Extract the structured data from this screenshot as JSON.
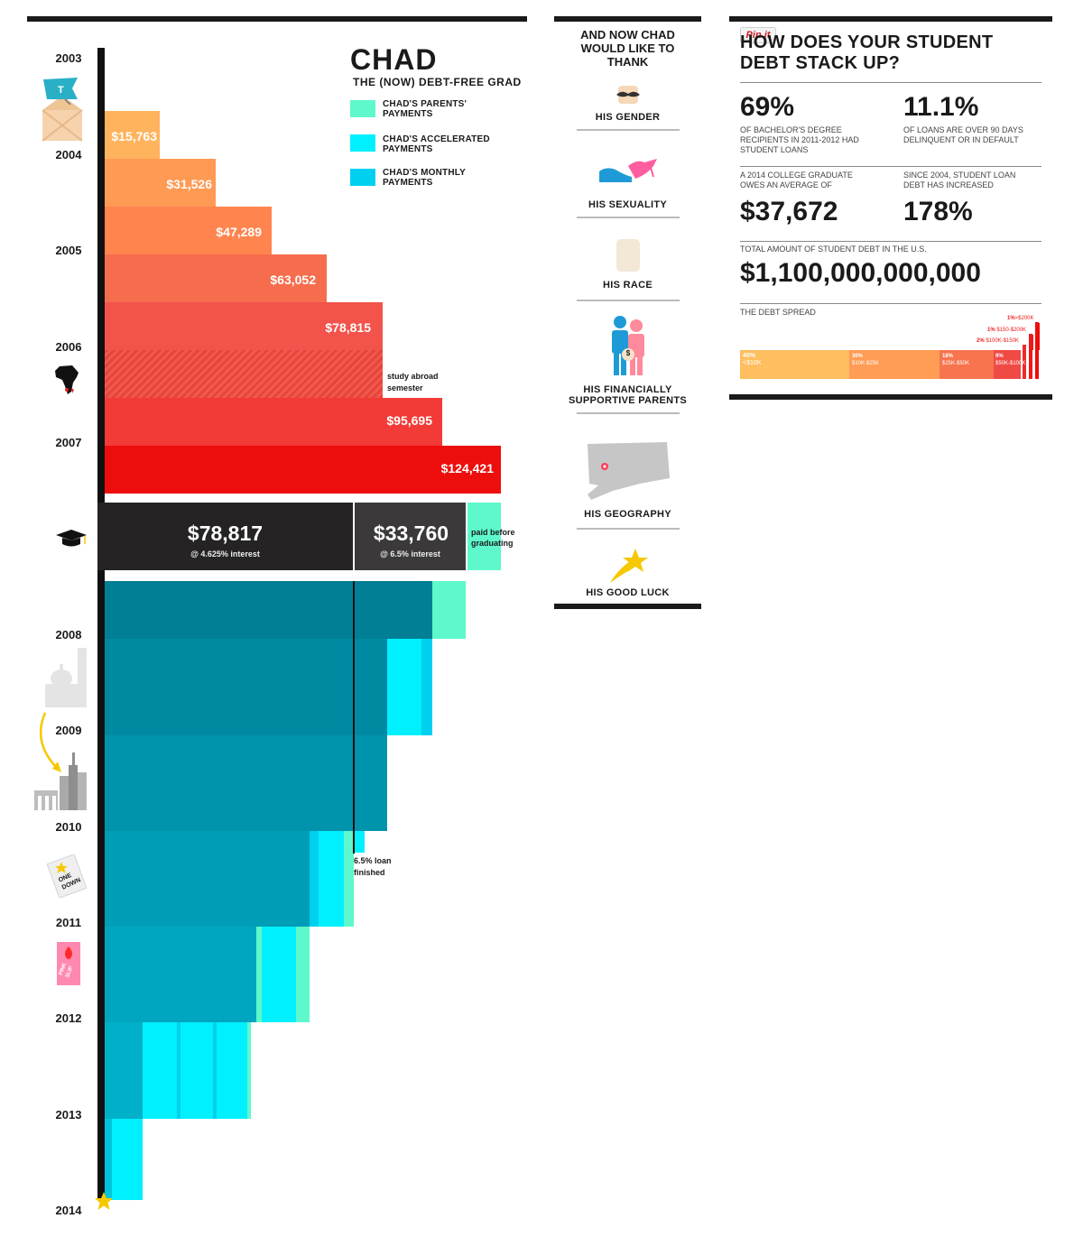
{
  "chart_data": {
    "type": "bar",
    "title": "CHAD",
    "subtitle": "THE (NOW) DEBT-FREE GRAD",
    "years": [
      "2003",
      "2004",
      "2005",
      "2006",
      "2007",
      "2008",
      "2009",
      "2010",
      "2011",
      "2012",
      "2013",
      "2014"
    ],
    "debt_bars": [
      {
        "label": "$15,763",
        "value": 15763
      },
      {
        "label": "$31,526",
        "value": 31526
      },
      {
        "label": "$47,289",
        "value": 47289
      },
      {
        "label": "$63,052",
        "value": 63052
      },
      {
        "label": "$78,815",
        "value": 78815
      },
      {
        "label": "",
        "value": 78815,
        "note": "study abroad semester"
      },
      {
        "label": "$95,695",
        "value": 95695
      },
      {
        "label": "$124,421",
        "value": 124421
      }
    ],
    "graduation": {
      "loan_a": {
        "amount": "$78,817",
        "interest": "@ 4.625% interest"
      },
      "loan_b": {
        "amount": "$33,760",
        "interest": "@ 6.5% interest"
      },
      "paid_note": "paid before graduating"
    },
    "payoff_note": "6.5% loan finished",
    "legend": [
      {
        "label": "CHAD'S PARENTS' PAYMENTS",
        "color": "#5ef8cc"
      },
      {
        "label": "CHAD'S ACCELERATED PAYMENTS",
        "color": "#00f0ff"
      },
      {
        "label": "CHAD'S MONTHLY PAYMENTS",
        "color": "#00d0f0"
      }
    ]
  },
  "thanks": {
    "heading": "AND NOW CHAD WOULD LIKE TO THANK",
    "items": [
      "HIS GENDER",
      "HIS SEXUALITY",
      "HIS RACE",
      "HIS FINANCIALLY SUPPORTIVE PARENTS",
      "HIS GEOGRAPHY",
      "HIS GOOD LUCK"
    ]
  },
  "icons": {
    "pin_label": "Pin it",
    "tumblr_letter": "T",
    "one_down": "ONE DOWN",
    "pink_slip": "PINK SLIP",
    "parent_coin": "$"
  },
  "stats": {
    "heading": "HOW DOES YOUR STUDENT DEBT STACK UP?",
    "s1_big": "69%",
    "s1_text": "OF BACHELOR'S DEGREE RECIPIENTS IN 2011-2012 HAD STUDENT LOANS",
    "s2_big": "11.1%",
    "s2_text": "OF LOANS ARE OVER 90 DAYS DELINQUENT OR IN DEFAULT",
    "s3_text": "A 2014 COLLEGE GRADUATE OWES AN AVERAGE OF",
    "s3_big": "$37,672",
    "s4_text": "SINCE 2004, STUDENT LOAN DEBT HAS INCREASED",
    "s4_big": "178%",
    "s5_text": "TOTAL AMOUNT OF STUDENT DEBT IN THE U.S.",
    "s5_big": "$1,100,000,000,000",
    "spread_title": "THE DEBT SPREAD",
    "spread": [
      {
        "pct": "40%",
        "range": "<$10K",
        "value": 40
      },
      {
        "pct": "30%",
        "range": "$10K-$25K",
        "value": 30
      },
      {
        "pct": "18%",
        "range": "$25K-$50K",
        "value": 18
      },
      {
        "pct": "9%",
        "range": "$50K-$100K",
        "value": 9
      },
      {
        "pct": "2%",
        "range": "$100K-$150K",
        "value": 2
      },
      {
        "pct": "1%",
        "range": "$150-$200K",
        "value": 1
      },
      {
        "pct": "1%",
        "range": ">$200K",
        "value": 1
      }
    ]
  }
}
